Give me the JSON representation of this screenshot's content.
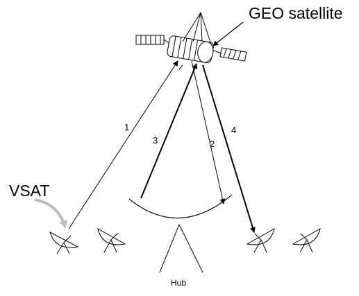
{
  "labels": {
    "satellite": "GEO satellite",
    "vsat": "VSAT",
    "hub": "Hub"
  },
  "paths": [
    "1",
    "2",
    "3",
    "4"
  ],
  "colors": {
    "line": "#000000",
    "vsat_arrow": "#bdbdbd"
  }
}
